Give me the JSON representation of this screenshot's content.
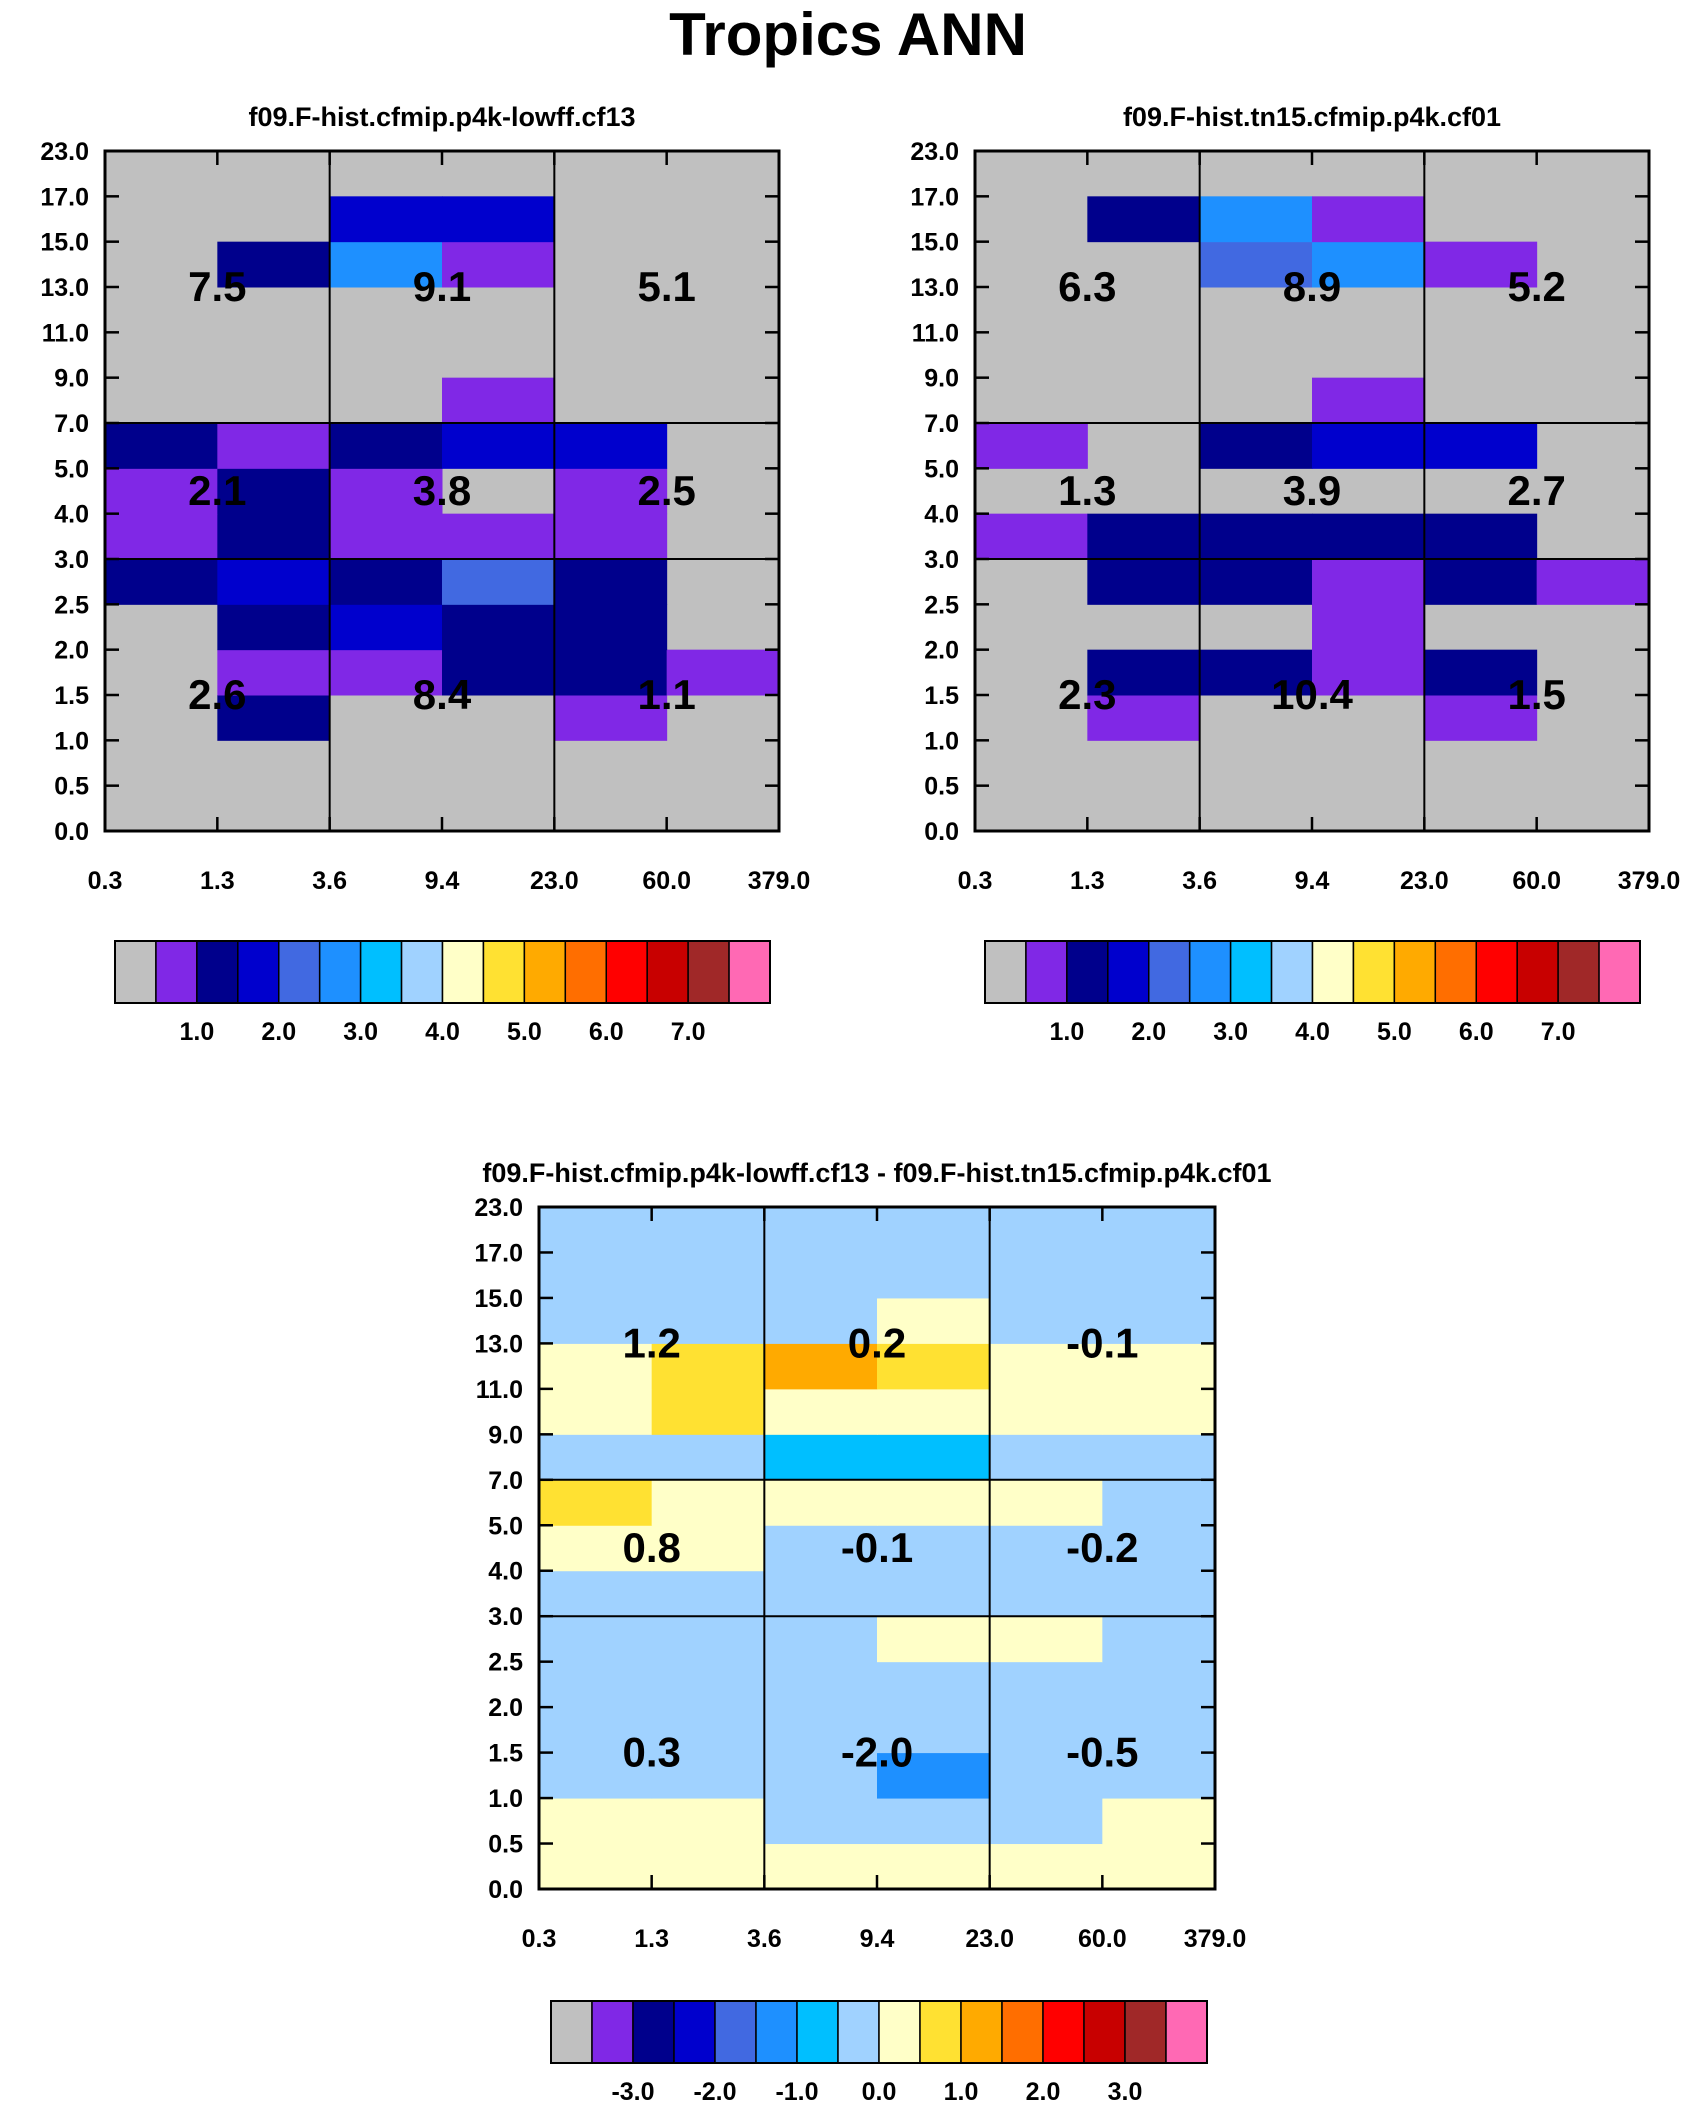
{
  "figure_title": "Tropics ANN",
  "colors": {
    "grey": "#c0c0c0",
    "bg": "#ffffff",
    "line": "#000000"
  },
  "chart_data": [
    {
      "type": "heatmap",
      "title": "f09.F-hist.cfmip.p4k-lowff.cf13",
      "x_ticks": [
        "0.3",
        "1.3",
        "3.6",
        "9.4",
        "23.0",
        "60.0",
        "379.0"
      ],
      "y_ticks": [
        "0.0",
        "0.5",
        "1.0",
        "1.5",
        "2.0",
        "2.5",
        "3.0",
        "4.0",
        "5.0",
        "7.0",
        "9.0",
        "11.0",
        "13.0",
        "15.0",
        "17.0",
        "23.0"
      ],
      "grid": [
        [
          null,
          null,
          null,
          null,
          null,
          null
        ],
        [
          null,
          null,
          null,
          null,
          null,
          null
        ],
        [
          null,
          "b2",
          null,
          null,
          "b1",
          null
        ],
        [
          null,
          "b1",
          "b1",
          "b2",
          "b2",
          "b1"
        ],
        [
          null,
          "b2",
          "b3",
          "b2",
          "b2",
          null
        ],
        [
          "b2",
          "b3",
          "b2",
          "b4",
          "b2",
          null
        ],
        [
          "b1",
          "b2",
          "b1",
          "b1",
          "b1",
          null
        ],
        [
          "b1",
          "b2",
          "b1",
          null,
          "b1",
          null
        ],
        [
          "b2",
          "b1",
          "b2",
          "b3",
          "b3",
          null
        ],
        [
          null,
          null,
          null,
          "b1",
          null,
          null
        ],
        [
          null,
          null,
          null,
          null,
          null,
          null
        ],
        [
          null,
          null,
          null,
          null,
          null,
          null
        ],
        [
          null,
          "b2",
          "b5",
          "b1",
          null,
          null
        ],
        [
          null,
          null,
          "b3",
          "b3",
          null,
          null
        ],
        [
          null,
          null,
          null,
          null,
          null,
          null
        ]
      ],
      "region_values": [
        [
          "2.6",
          "8.4",
          "1.1"
        ],
        [
          "2.1",
          "3.8",
          "2.5"
        ],
        [
          "7.5",
          "9.1",
          "5.1"
        ]
      ],
      "colorbar": {
        "colors": [
          "#c0c0c0",
          "#8028e6",
          "#00008c",
          "#0000cd",
          "#4169e1",
          "#1e90ff",
          "#00bfff",
          "#a0d2ff",
          "#ffffc8",
          "#ffe132",
          "#ffaa00",
          "#ff6e00",
          "#ff0000",
          "#c80000",
          "#a02828",
          "#ff69b4"
        ],
        "labels": [
          "1.0",
          "2.0",
          "3.0",
          "4.0",
          "5.0",
          "6.0",
          "7.0"
        ]
      }
    },
    {
      "type": "heatmap",
      "title": "f09.F-hist.tn15.cfmip.p4k.cf01",
      "x_ticks": [
        "0.3",
        "1.3",
        "3.6",
        "9.4",
        "23.0",
        "60.0",
        "379.0"
      ],
      "y_ticks": [
        "0.0",
        "0.5",
        "1.0",
        "1.5",
        "2.0",
        "2.5",
        "3.0",
        "4.0",
        "5.0",
        "7.0",
        "9.0",
        "11.0",
        "13.0",
        "15.0",
        "17.0",
        "23.0"
      ],
      "grid": [
        [
          null,
          null,
          null,
          null,
          null,
          null
        ],
        [
          null,
          null,
          null,
          null,
          null,
          null
        ],
        [
          null,
          "b1",
          null,
          null,
          "b1",
          null
        ],
        [
          null,
          "b2",
          "b2",
          "b1",
          "b2",
          null
        ],
        [
          null,
          null,
          null,
          "b1",
          null,
          null
        ],
        [
          null,
          "b2",
          "b2",
          "b1",
          "b2",
          "b1"
        ],
        [
          "b1",
          "b2",
          "b2",
          "b2",
          "b2",
          null
        ],
        [
          null,
          null,
          null,
          null,
          null,
          null
        ],
        [
          "b1",
          null,
          "b2",
          "b3",
          "b3",
          null
        ],
        [
          null,
          null,
          null,
          "b1",
          null,
          null
        ],
        [
          null,
          null,
          null,
          null,
          null,
          null
        ],
        [
          null,
          null,
          null,
          null,
          null,
          null
        ],
        [
          null,
          null,
          "b4",
          "b5",
          "b1",
          null
        ],
        [
          null,
          "b2",
          "b5",
          "b1",
          null,
          null
        ],
        [
          null,
          null,
          null,
          null,
          null,
          null
        ]
      ],
      "region_values": [
        [
          "2.3",
          "10.4",
          "1.5"
        ],
        [
          "1.3",
          "3.9",
          "2.7"
        ],
        [
          "6.3",
          "8.9",
          "5.2"
        ]
      ],
      "colorbar": {
        "colors": [
          "#c0c0c0",
          "#8028e6",
          "#00008c",
          "#0000cd",
          "#4169e1",
          "#1e90ff",
          "#00bfff",
          "#a0d2ff",
          "#ffffc8",
          "#ffe132",
          "#ffaa00",
          "#ff6e00",
          "#ff0000",
          "#c80000",
          "#a02828",
          "#ff69b4"
        ],
        "labels": [
          "1.0",
          "2.0",
          "3.0",
          "4.0",
          "5.0",
          "6.0",
          "7.0"
        ]
      }
    },
    {
      "type": "heatmap",
      "title": "f09.F-hist.cfmip.p4k-lowff.cf13 - f09.F-hist.tn15.cfmip.p4k.cf01",
      "x_ticks": [
        "0.3",
        "1.3",
        "3.6",
        "9.4",
        "23.0",
        "60.0",
        "379.0"
      ],
      "y_ticks": [
        "0.0",
        "0.5",
        "1.0",
        "1.5",
        "2.0",
        "2.5",
        "3.0",
        "4.0",
        "5.0",
        "7.0",
        "9.0",
        "11.0",
        "13.0",
        "15.0",
        "17.0",
        "23.0"
      ],
      "grid": [
        [
          "dy",
          "dy",
          "dy",
          "dy",
          "dy",
          "dy"
        ],
        [
          "dy",
          "dy",
          "db",
          "db",
          "db",
          "dy"
        ],
        [
          "db",
          "db",
          "db",
          "dm",
          "db",
          "db"
        ],
        [
          "db",
          "db",
          "db",
          "db",
          "db",
          "db"
        ],
        [
          "db",
          "db",
          "db",
          "db",
          "db",
          "db"
        ],
        [
          "db",
          "db",
          "db",
          "dy",
          "dy",
          "db"
        ],
        [
          "db",
          "db",
          "db",
          "db",
          "db",
          "db"
        ],
        [
          "dy",
          "dy",
          "db",
          "db",
          "db",
          "db"
        ],
        [
          "dg",
          "dy",
          "dy",
          "dy",
          "dy",
          "db"
        ],
        [
          "db",
          "db",
          "dc",
          "dc",
          "db",
          "db"
        ],
        [
          "dy",
          "dg",
          "dy",
          "dy",
          "dy",
          "dy"
        ],
        [
          "dy",
          "dg",
          "do",
          "dg",
          "dy",
          "dy"
        ],
        [
          "db",
          "db",
          "db",
          "dy",
          "db",
          "db"
        ],
        [
          "db",
          "db",
          "db",
          "db",
          "db",
          "db"
        ],
        [
          "db",
          "db",
          "db",
          "db",
          "db",
          "db"
        ]
      ],
      "region_values": [
        [
          "0.3",
          "-2.0",
          "-0.5"
        ],
        [
          "0.8",
          "-0.1",
          "-0.2"
        ],
        [
          "1.2",
          "0.2",
          "-0.1"
        ]
      ],
      "colorbar": {
        "colors": [
          "#c0c0c0",
          "#8028e6",
          "#00008c",
          "#0000cd",
          "#4169e1",
          "#1e90ff",
          "#00bfff",
          "#a0d2ff",
          "#ffffc8",
          "#ffe132",
          "#ffaa00",
          "#ff6e00",
          "#ff0000",
          "#c80000",
          "#a02828",
          "#ff69b4"
        ],
        "labels": [
          "-3.0",
          "-2.0",
          "-1.0",
          "0.0",
          "1.0",
          "2.0",
          "3.0"
        ]
      }
    }
  ],
  "cell_colors": {
    "b1": "#8028e6",
    "b2": "#00008c",
    "b3": "#0000cd",
    "b4": "#4169e1",
    "b5": "#1e90ff",
    "db": "#a0d2ff",
    "dy": "#ffffc8",
    "dg": "#ffe132",
    "do": "#ffaa00",
    "dc": "#00bfff",
    "dm": "#1e90ff"
  }
}
